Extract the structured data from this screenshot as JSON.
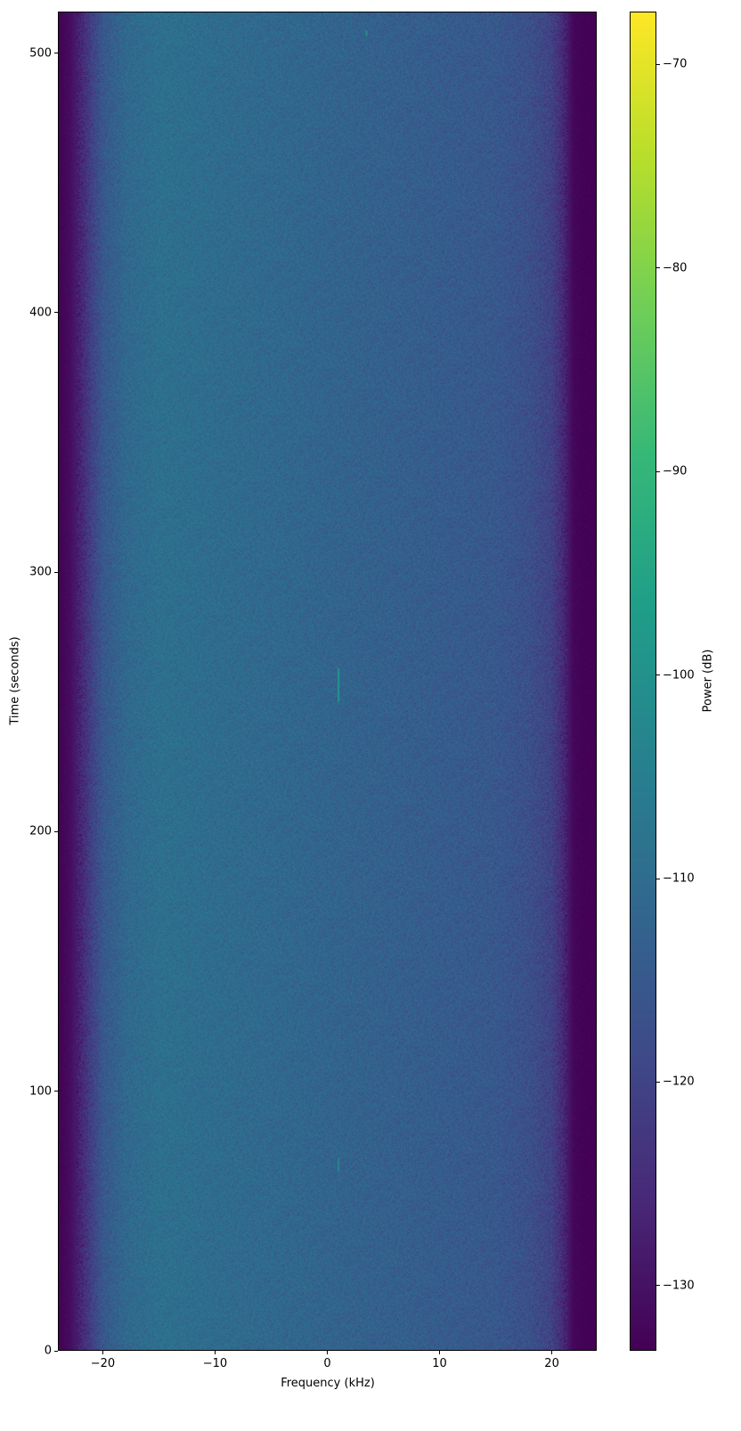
{
  "chart_data": {
    "type": "heatmap",
    "title": "",
    "xlabel": "Frequency (kHz)",
    "ylabel": "Time (seconds)",
    "xlim": [
      -24,
      24
    ],
    "ylim": [
      0,
      516
    ],
    "xticks": [
      -20,
      -10,
      0,
      10,
      20
    ],
    "xtick_labels": [
      "−20",
      "−10",
      "0",
      "10",
      "20"
    ],
    "yticks": [
      0,
      100,
      200,
      300,
      400,
      500
    ],
    "ytick_labels": [
      "0",
      "100",
      "200",
      "300",
      "400",
      "500"
    ],
    "colormap": "viridis",
    "colorbar": {
      "label": "Power (dB)",
      "range": [
        -133.2,
        -67.4
      ],
      "ticks": [
        -130,
        -120,
        -110,
        -100,
        -90,
        -80,
        -70
      ],
      "tick_labels": [
        "−130",
        "−120",
        "−110",
        "−100",
        "−90",
        "−80",
        "−70"
      ]
    },
    "power_profile_vs_frequency": {
      "frequency_khz": [
        -24,
        -23,
        -22,
        -21,
        -20,
        -18,
        -15,
        -10,
        -5,
        0,
        5,
        10,
        15,
        18,
        20,
        21,
        22,
        23,
        24
      ],
      "power_db": [
        -133,
        -131,
        -126,
        -120,
        -115,
        -111,
        -109,
        -110,
        -111,
        -112,
        -113,
        -114,
        -115,
        -117,
        -120,
        -125,
        -132,
        -133,
        -133
      ]
    },
    "signals": [
      {
        "frequency_khz": 1.0,
        "time_start": 250,
        "time_end": 263,
        "power_db": -98
      },
      {
        "frequency_khz": 1.0,
        "time_start": 69,
        "time_end": 74,
        "power_db": -102
      },
      {
        "frequency_khz": 3.5,
        "time_start": 507,
        "time_end": 509,
        "power_db": -100
      }
    ]
  }
}
